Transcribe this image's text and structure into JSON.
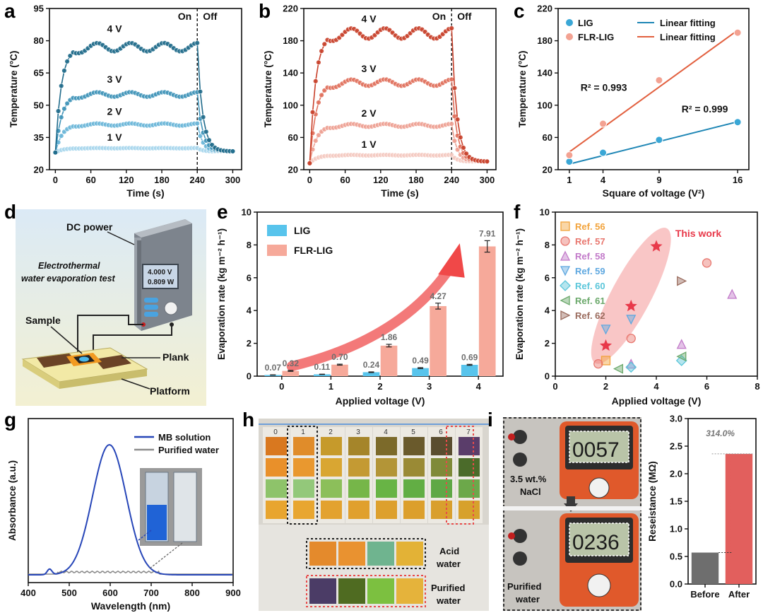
{
  "panel_labels": {
    "a": "a",
    "b": "b",
    "c": "c",
    "d": "d",
    "e": "e",
    "f": "f",
    "g": "g",
    "h": "h",
    "i": "i"
  },
  "chart_data": [
    {
      "id": "a",
      "type": "line",
      "xlabel": "Time (s)",
      "ylabel": "Temperature (°C)",
      "xlim": [
        -10,
        315
      ],
      "ylim": [
        20,
        95
      ],
      "xticks": [
        0,
        60,
        120,
        180,
        240,
        300
      ],
      "yticks": [
        20,
        35,
        50,
        65,
        80,
        95
      ],
      "on_label": "On",
      "off_label": "Off",
      "switch_x": 240,
      "series": [
        {
          "name": "4 V",
          "plateau": 77,
          "rise": 0.3,
          "color": "#1f6a8a",
          "label_x": 100,
          "label_y": 84
        },
        {
          "name": "3 V",
          "plateau": 55,
          "rise": 0.28,
          "color": "#3f93b8",
          "label_x": 100,
          "label_y": 60.5
        },
        {
          "name": "2 V",
          "plateau": 41,
          "rise": 0.27,
          "color": "#6ab6d8",
          "label_x": 100,
          "label_y": 45.5
        },
        {
          "name": "1 V",
          "plateau": 30,
          "rise": 0.25,
          "color": "#a7d6ec",
          "label_x": 100,
          "label_y": 33.5
        }
      ],
      "start": 28,
      "end": 28.5
    },
    {
      "id": "b",
      "type": "line",
      "xlabel": "Time (s)",
      "ylabel": "Temperature (°C)",
      "xlim": [
        -10,
        315
      ],
      "ylim": [
        20,
        220
      ],
      "xticks": [
        0,
        60,
        120,
        180,
        240,
        300
      ],
      "yticks": [
        20,
        60,
        100,
        140,
        180,
        220
      ],
      "on_label": "On",
      "off_label": "Off",
      "switch_x": 240,
      "series": [
        {
          "name": "4 V",
          "plateau": 189,
          "rise": 0.3,
          "color": "#c8402a",
          "label_x": 100,
          "label_y": 203
        },
        {
          "name": "3 V",
          "plateau": 128,
          "rise": 0.28,
          "color": "#e0705c",
          "label_x": 100,
          "label_y": 141
        },
        {
          "name": "2 V",
          "plateau": 75,
          "rise": 0.27,
          "color": "#eda092",
          "label_x": 100,
          "label_y": 86
        },
        {
          "name": "1 V",
          "plateau": 38,
          "rise": 0.25,
          "color": "#f4c9c0",
          "label_x": 100,
          "label_y": 47
        }
      ],
      "start": 28,
      "end": 30
    },
    {
      "id": "c",
      "type": "scatter",
      "xlabel": "Square of voltage (V²)",
      "ylabel": "Temperature (°C)",
      "xlim": [
        0,
        17
      ],
      "ylim": [
        20,
        220
      ],
      "xticks": [
        1,
        4,
        9,
        16
      ],
      "yticks": [
        20,
        60,
        100,
        140,
        180,
        220
      ],
      "legend": [
        {
          "marker": "LIG",
          "line": "Linear fitting"
        },
        {
          "marker": "FLR-LIG",
          "line": "Linear fitting"
        }
      ],
      "series": [
        {
          "name": "LIG",
          "color": "#3aa7d6",
          "line_color": "#1e86b5",
          "x": [
            1,
            4,
            9,
            16
          ],
          "y": [
            30,
            41,
            57,
            79
          ],
          "fit": [
            27,
            79.5
          ],
          "r2": "R² = 0.999",
          "r2_at": [
            11,
            91
          ]
        },
        {
          "name": "FLR-LIG",
          "color": "#f3a292",
          "line_color": "#e2603f",
          "x": [
            1,
            4,
            9,
            16
          ],
          "y": [
            38,
            77,
            131,
            190
          ],
          "fit": [
            42,
            193
          ],
          "r2": "R² = 0.993",
          "r2_at": [
            2,
            118
          ]
        }
      ]
    },
    {
      "id": "e",
      "type": "bar",
      "xlabel": "Applied voltage (V)",
      "ylabel": "Evaporation rate (kg m⁻² h⁻¹)",
      "categories": [
        "0",
        "1",
        "2",
        "3",
        "4"
      ],
      "ylim": [
        0,
        10
      ],
      "yticks": [
        0,
        2,
        4,
        6,
        8,
        10
      ],
      "series": [
        {
          "name": "LIG",
          "color": "#58c4ec",
          "values": [
            0.07,
            0.11,
            0.24,
            0.49,
            0.69
          ],
          "labels": [
            "0.07",
            "0.11",
            "0.24",
            "0.49",
            "0.69"
          ],
          "errors": [
            0.01,
            0.01,
            0.02,
            0.03,
            0.03
          ]
        },
        {
          "name": "FLR-LIG",
          "color": "#f6a99a",
          "values": [
            0.32,
            0.7,
            1.86,
            4.27,
            7.91
          ],
          "labels": [
            "0.32",
            "0.70",
            "1.86",
            "4.27",
            "7.91"
          ],
          "errors": [
            0.03,
            0.03,
            0.08,
            0.18,
            0.35
          ]
        }
      ]
    },
    {
      "id": "f",
      "type": "scatter",
      "xlabel": "Applied voltage (V)",
      "ylabel": "Evaporation rate (kg m⁻² h⁻¹)",
      "xlim": [
        0,
        8
      ],
      "ylim": [
        0,
        10
      ],
      "xticks": [
        0,
        2,
        4,
        6,
        8
      ],
      "yticks": [
        0,
        2,
        4,
        6,
        8,
        10
      ],
      "this_work_label": "This work",
      "series": [
        {
          "name": "Ref. 56",
          "marker": "square",
          "color": "#f2a33b",
          "x": [
            2
          ],
          "y": [
            0.95
          ]
        },
        {
          "name": "Ref. 57",
          "marker": "circle",
          "color": "#e8776f",
          "x": [
            1.7,
            3,
            6
          ],
          "y": [
            0.75,
            2.3,
            6.9
          ]
        },
        {
          "name": "Ref. 58",
          "marker": "triangle-up",
          "color": "#c27ac9",
          "x": [
            3,
            5,
            7
          ],
          "y": [
            0.75,
            1.95,
            5.0
          ]
        },
        {
          "name": "Ref. 59",
          "marker": "triangle-down",
          "color": "#5fa8e0",
          "x": [
            2,
            3
          ],
          "y": [
            2.85,
            3.45
          ]
        },
        {
          "name": "Ref. 60",
          "marker": "diamond",
          "color": "#5bc6da",
          "x": [
            3,
            5
          ],
          "y": [
            0.55,
            0.95
          ]
        },
        {
          "name": "Ref. 61",
          "marker": "triangle-left",
          "color": "#6aa86a",
          "x": [
            2.5,
            5
          ],
          "y": [
            0.45,
            1.2
          ]
        },
        {
          "name": "Ref. 62",
          "marker": "triangle-right",
          "color": "#9a6b5d",
          "x": [
            5
          ],
          "y": [
            5.8
          ]
        },
        {
          "name": "This work",
          "marker": "star",
          "color": "#e8394a",
          "x": [
            2,
            3,
            4
          ],
          "y": [
            1.86,
            4.27,
            7.91
          ]
        }
      ]
    },
    {
      "id": "g",
      "type": "line",
      "xlabel": "Wavelength (nm)",
      "ylabel": "Absorbance (a.u.)",
      "xlim": [
        400,
        900
      ],
      "xticks": [
        400,
        500,
        600,
        700,
        800,
        900
      ],
      "series": [
        {
          "name": "MB solution",
          "color": "#2746b8"
        },
        {
          "name": "Purified water",
          "color": "#8d8d8d"
        }
      ]
    },
    {
      "id": "i",
      "type": "bar",
      "ylabel": "Reseistance (MΩ)",
      "categories": [
        "Before",
        "After"
      ],
      "ylim": [
        0,
        3.0
      ],
      "yticks": [
        "0.0",
        "0.5",
        "1.0",
        "1.5",
        "2.0",
        "2.5",
        "3.0"
      ],
      "values": [
        0.57,
        2.36
      ],
      "colors": [
        "#6e6e6e",
        "#e25f5d"
      ],
      "annotation": "314.0%"
    }
  ],
  "panel_d": {
    "title_line1": "Electrothermal",
    "title_line2": "water evaporation test",
    "dc_power": "DC power",
    "readout_v": "4.000 V",
    "readout_w": "0.809 W",
    "sample": "Sample",
    "plank": "Plank",
    "platform": "Platform"
  },
  "panel_h": {
    "strip_numbers": [
      "0",
      "1",
      "2",
      "3",
      "4",
      "5",
      "6",
      "7"
    ],
    "acid_label_1": "Acid",
    "acid_label_2": "water",
    "purified_label_1": "Purified",
    "purified_label_2": "water"
  },
  "panel_i": {
    "meter_top": "0057",
    "meter_bottom": "0236",
    "nacl_line1": "3.5 wt.%",
    "nacl_line2": "NaCl",
    "purified_line1": "Purified",
    "purified_line2": "water"
  },
  "colors": {
    "lig_blue": "#58c4ec",
    "flr_red": "#f6a99a",
    "arrow_red": "#e8394a"
  }
}
